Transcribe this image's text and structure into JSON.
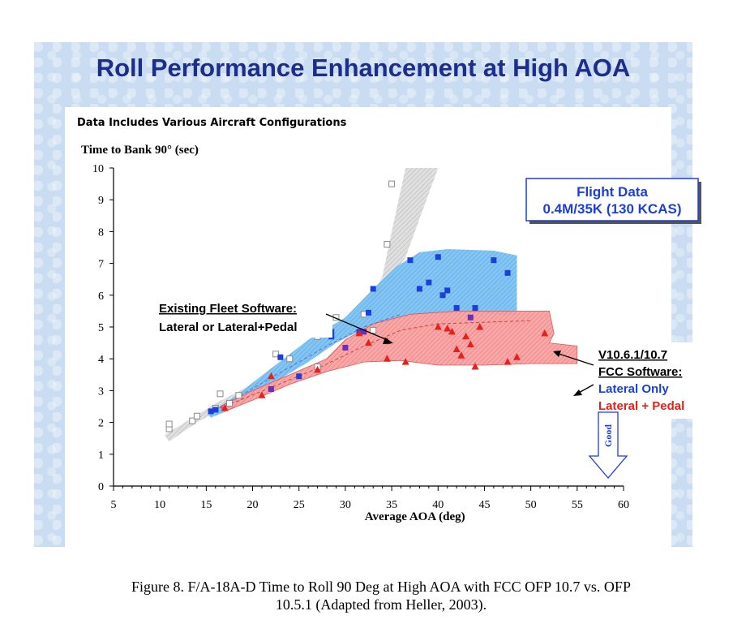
{
  "slide": {
    "title": "Roll Performance Enhancement at High AOA",
    "subtitle": "Data Includes Various Aircraft Configurations"
  },
  "caption": {
    "line1": "Figure 8.  F/A-18A-D Time to Roll 90 Deg at High AOA with  FCC OFP 10.7 vs. OFP",
    "line2": "10.5.1 (Adapted from Heller, 2003)."
  },
  "chart_data": {
    "type": "scatter",
    "xlabel": "Average AOA (deg)",
    "ylabel": "Time to Bank 90° (sec)",
    "xlim": [
      5,
      60
    ],
    "ylim": [
      0,
      10
    ],
    "xticks": [
      5,
      10,
      15,
      20,
      25,
      30,
      35,
      40,
      45,
      50,
      55,
      60
    ],
    "yticks": [
      0,
      1,
      2,
      3,
      4,
      5,
      6,
      7,
      8,
      9,
      10
    ],
    "grid": false,
    "annotations": {
      "flight_data_line1": "Flight Data",
      "flight_data_line2": "0.4M/35K (130 KCAS)",
      "existing_line1": "Existing Fleet Software:",
      "existing_line2": "Lateral or Lateral+Pedal",
      "new_line1": "V10.6.1/10.7",
      "new_line2": "FCC Software:",
      "new_line3": "Lateral Only",
      "new_line4": "Lateral + Pedal",
      "good": "Good"
    },
    "colors": {
      "existing": "#9a9a9a",
      "lateral_only": "#1b3fdb",
      "lateral_pedal": "#e8201a",
      "title": "#1c2d8c",
      "good_arrow": "#1b3fdb"
    },
    "series": [
      {
        "name": "Existing Fleet Software: Lateral or Lateral+Pedal",
        "marker": "square-open",
        "points": [
          [
            11,
            1.8
          ],
          [
            11,
            1.95
          ],
          [
            13.5,
            2.05
          ],
          [
            14,
            2.2
          ],
          [
            16,
            2.45
          ],
          [
            16.5,
            2.9
          ],
          [
            17.5,
            2.6
          ],
          [
            18.5,
            2.85
          ],
          [
            22.5,
            4.15
          ],
          [
            24,
            4.0
          ],
          [
            25,
            4.8
          ],
          [
            27,
            4.7
          ],
          [
            27,
            3.75
          ],
          [
            29,
            5.3
          ],
          [
            32,
            5.4
          ],
          [
            33,
            4.9
          ],
          [
            34.5,
            7.6
          ],
          [
            35,
            9.5
          ]
        ]
      },
      {
        "name": "Lateral Only",
        "marker": "square",
        "points": [
          [
            15.5,
            2.35
          ],
          [
            16,
            2.4
          ],
          [
            22,
            3.05
          ],
          [
            23,
            4.05
          ],
          [
            25,
            3.45
          ],
          [
            28.5,
            4.85
          ],
          [
            28.5,
            4.7
          ],
          [
            30,
            4.35
          ],
          [
            31.5,
            4.85
          ],
          [
            32,
            4.85
          ],
          [
            32.5,
            5.45
          ],
          [
            33,
            6.2
          ],
          [
            37,
            7.1
          ],
          [
            38,
            6.2
          ],
          [
            39,
            6.4
          ],
          [
            40,
            7.2
          ],
          [
            40.5,
            6.0
          ],
          [
            41,
            6.15
          ],
          [
            42,
            5.6
          ],
          [
            43.5,
            5.3
          ],
          [
            44,
            5.6
          ],
          [
            46,
            7.1
          ],
          [
            47.5,
            6.7
          ]
        ]
      },
      {
        "name": "Lateral + Pedal",
        "marker": "triangle",
        "points": [
          [
            17,
            2.45
          ],
          [
            21,
            2.85
          ],
          [
            22,
            3.45
          ],
          [
            27,
            3.65
          ],
          [
            31.5,
            4.8
          ],
          [
            32.5,
            4.5
          ],
          [
            34.5,
            4.55
          ],
          [
            34.5,
            4.0
          ],
          [
            36.5,
            3.9
          ],
          [
            40,
            5.0
          ],
          [
            41,
            4.95
          ],
          [
            41.5,
            4.85
          ],
          [
            42,
            4.3
          ],
          [
            42.5,
            4.1
          ],
          [
            43,
            4.7
          ],
          [
            43.5,
            4.45
          ],
          [
            44,
            3.75
          ],
          [
            44.5,
            5.0
          ],
          [
            47.5,
            3.9
          ],
          [
            48.5,
            4.05
          ],
          [
            51.5,
            4.8
          ]
        ]
      }
    ]
  }
}
